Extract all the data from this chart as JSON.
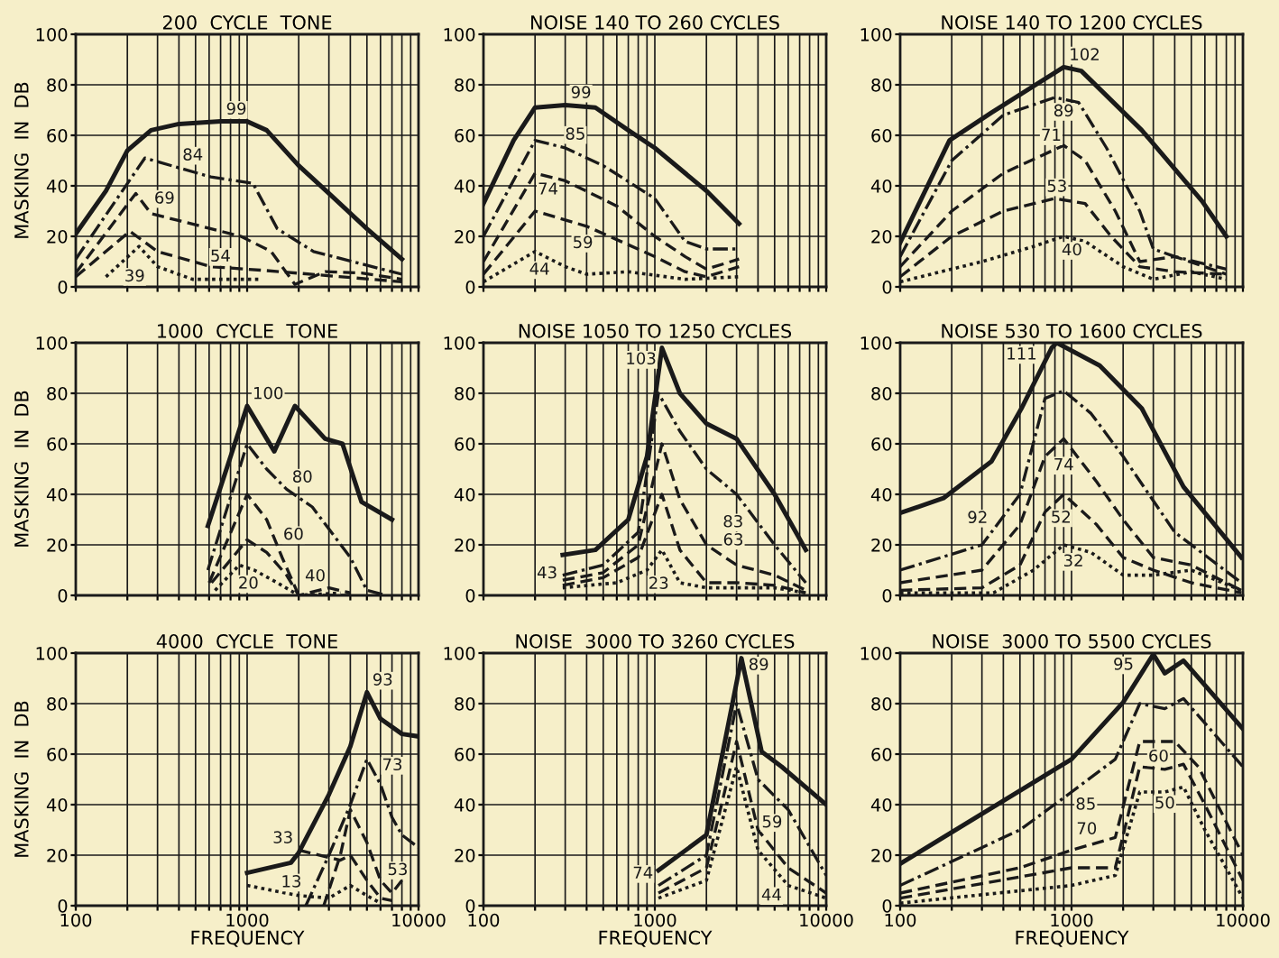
{
  "chart_data": [
    {
      "type": "line",
      "title": "200  CYCLE  TONE",
      "ylabel": "MASKING  IN  DB",
      "xlim": [
        100,
        10000
      ],
      "ylim": [
        0,
        100
      ],
      "log": "x",
      "grid": true,
      "tick_labels": "y",
      "legend": false,
      "xticks": [
        100,
        {
          "value": 200,
          "label": null
        },
        {
          "value": 300,
          "label": null
        },
        {
          "value": 400,
          "label": null
        },
        {
          "value": 500,
          "label": null
        },
        {
          "value": 600,
          "label": null
        },
        {
          "value": 700,
          "label": null
        },
        {
          "value": 800,
          "label": null
        },
        {
          "value": 900,
          "label": null
        },
        1000,
        {
          "value": 2000,
          "label": null
        },
        {
          "value": 3000,
          "label": null
        },
        {
          "value": 4000,
          "label": null
        },
        {
          "value": 5000,
          "label": null
        },
        {
          "value": 6000,
          "label": null
        },
        {
          "value": 7000,
          "label": null
        },
        {
          "value": 8000,
          "label": null
        },
        {
          "value": 9000,
          "label": null
        },
        10000
      ],
      "yticks": [
        0,
        20,
        40,
        60,
        80,
        100
      ],
      "series": [
        {
          "name": "99",
          "color": "#1a1a1a",
          "line_style": "solid",
          "x": [
            100,
            150,
            200,
            275,
            400,
            700,
            1000,
            1300,
            2000,
            3000,
            5000,
            8000
          ],
          "values": [
            21,
            38,
            54,
            62,
            64.5,
            65.5,
            65.5,
            62,
            48,
            37,
            23,
            11
          ]
        },
        {
          "name": "84",
          "color": "#1a1a1a",
          "line_style": "dashdot",
          "x": [
            100,
            253,
            615,
            1080,
            1500,
            2440,
            8000
          ],
          "values": [
            11,
            51,
            43.5,
            41,
            23,
            14,
            5
          ]
        },
        {
          "name": "69",
          "color": "#1a1a1a",
          "line_style": "dashed",
          "x": [
            100,
            224,
            275,
            412,
            920,
            1380,
            1900,
            2850,
            4650,
            8000
          ],
          "values": [
            5.5,
            37,
            29,
            26,
            20,
            14,
            1,
            6,
            5.5,
            3
          ]
        },
        {
          "name": "54",
          "color": "#1a1a1a",
          "line_style": "dashed",
          "x": [
            100,
            207,
            300,
            615,
            1270,
            8000
          ],
          "values": [
            4,
            22,
            14,
            8,
            6.5,
            2
          ]
        },
        {
          "name": "39",
          "color": "#1a1a1a",
          "line_style": "dotted",
          "x": [
            150,
            234,
            300,
            480,
            1170
          ],
          "values": [
            4,
            16,
            8,
            3,
            3
          ]
        }
      ]
    },
    {
      "type": "line",
      "title": "NOISE 140 TO 260 CYCLES",
      "xlim": [
        100,
        10000
      ],
      "ylim": [
        0,
        100
      ],
      "log": "x",
      "grid": true,
      "tick_labels": "y",
      "legend": false,
      "xticks": [
        100,
        {
          "value": 200,
          "label": null
        },
        {
          "value": 300,
          "label": null
        },
        {
          "value": 400,
          "label": null
        },
        {
          "value": 500,
          "label": null
        },
        {
          "value": 600,
          "label": null
        },
        {
          "value": 700,
          "label": null
        },
        {
          "value": 800,
          "label": null
        },
        {
          "value": 900,
          "label": null
        },
        1000,
        {
          "value": 2000,
          "label": null
        },
        {
          "value": 3000,
          "label": null
        },
        {
          "value": 4000,
          "label": null
        },
        {
          "value": 5000,
          "label": null
        },
        {
          "value": 6000,
          "label": null
        },
        {
          "value": 7000,
          "label": null
        },
        {
          "value": 8000,
          "label": null
        },
        {
          "value": 9000,
          "label": null
        },
        10000
      ],
      "yticks": [
        0,
        20,
        40,
        60,
        80,
        100
      ],
      "series": [
        {
          "name": "99",
          "color": "#1a1a1a",
          "line_style": "solid",
          "x": [
            100,
            150,
            200,
            300,
            450,
            700,
            1000,
            2000,
            3100
          ],
          "values": [
            33,
            58,
            71,
            72,
            71,
            62,
            55,
            38,
            25
          ]
        },
        {
          "name": "85",
          "color": "#1a1a1a",
          "line_style": "dashdot",
          "x": [
            100,
            200,
            300,
            500,
            1000,
            1500,
            2000,
            3100
          ],
          "values": [
            20,
            58,
            55,
            48,
            35,
            18,
            15,
            15
          ]
        },
        {
          "name": "74",
          "color": "#1a1a1a",
          "line_style": "dashed",
          "x": [
            100,
            200,
            300,
            600,
            1000,
            1500,
            2000,
            3100
          ],
          "values": [
            10,
            45,
            42,
            32,
            20,
            12,
            7,
            11
          ]
        },
        {
          "name": "59",
          "color": "#1a1a1a",
          "line_style": "dashed",
          "x": [
            100,
            200,
            400,
            1000,
            1500,
            2000,
            3100
          ],
          "values": [
            5,
            30,
            24,
            12,
            6,
            4,
            8
          ]
        },
        {
          "name": "44",
          "color": "#1a1a1a",
          "line_style": "dotted",
          "x": [
            100,
            200,
            300,
            400,
            700,
            1500,
            3100
          ],
          "values": [
            2,
            14,
            8,
            5,
            6,
            3,
            4
          ]
        }
      ]
    },
    {
      "type": "line",
      "title": "NOISE 140 TO 1200 CYCLES",
      "xlim": [
        100,
        10000
      ],
      "ylim": [
        0,
        100
      ],
      "log": "x",
      "grid": true,
      "tick_labels": "y",
      "legend": false,
      "xticks": [
        100,
        {
          "value": 200,
          "label": null
        },
        {
          "value": 300,
          "label": null
        },
        {
          "value": 400,
          "label": null
        },
        {
          "value": 500,
          "label": null
        },
        {
          "value": 600,
          "label": null
        },
        {
          "value": 700,
          "label": null
        },
        {
          "value": 800,
          "label": null
        },
        {
          "value": 900,
          "label": null
        },
        1000,
        {
          "value": 2000,
          "label": null
        },
        {
          "value": 3000,
          "label": null
        },
        {
          "value": 4000,
          "label": null
        },
        {
          "value": 5000,
          "label": null
        },
        {
          "value": 6000,
          "label": null
        },
        {
          "value": 7000,
          "label": null
        },
        {
          "value": 8000,
          "label": null
        },
        {
          "value": 9000,
          "label": null
        },
        10000
      ],
      "yticks": [
        0,
        20,
        40,
        60,
        80,
        100
      ],
      "series": [
        {
          "name": "102",
          "color": "#1a1a1a",
          "line_style": "solid",
          "x": [
            100,
            194,
            341,
            900,
            1140,
            2570,
            5770,
            8000
          ],
          "values": [
            17.5,
            58,
            69,
            87,
            85.5,
            62,
            34,
            20
          ]
        },
        {
          "name": "89",
          "color": "#1a1a1a",
          "line_style": "dashdot",
          "x": [
            100,
            200,
            400,
            800,
            1100,
            1600,
            2500,
            3000,
            4000,
            8000
          ],
          "values": [
            12,
            50,
            68,
            75,
            73,
            55,
            30,
            15,
            12,
            7
          ]
        },
        {
          "name": "71",
          "color": "#1a1a1a",
          "line_style": "dashed",
          "x": [
            100,
            200,
            400,
            900,
            1200,
            1800,
            2500,
            4000,
            8000
          ],
          "values": [
            8,
            30,
            45,
            56,
            50,
            30,
            10,
            12,
            5
          ]
        },
        {
          "name": "53",
          "color": "#1a1a1a",
          "line_style": "dashed",
          "x": [
            100,
            200,
            400,
            800,
            1200,
            1700,
            2500,
            4000,
            8000
          ],
          "values": [
            4,
            20,
            30,
            35,
            33,
            20,
            8,
            6,
            5
          ]
        },
        {
          "name": "40",
          "color": "#1a1a1a",
          "line_style": "dotted",
          "x": [
            100,
            300,
            600,
            900,
            1200,
            2000,
            3000,
            5000,
            8000
          ],
          "values": [
            2,
            10,
            16,
            20,
            18,
            8,
            3,
            6,
            3
          ]
        }
      ]
    },
    {
      "type": "line",
      "title": "1000  CYCLE  TONE",
      "ylabel": "MASKING  IN  DB",
      "xlim": [
        100,
        10000
      ],
      "ylim": [
        0,
        100
      ],
      "log": "x",
      "grid": true,
      "tick_labels": "y",
      "legend": false,
      "xticks": [
        100,
        {
          "value": 200,
          "label": null
        },
        {
          "value": 300,
          "label": null
        },
        {
          "value": 400,
          "label": null
        },
        {
          "value": 500,
          "label": null
        },
        {
          "value": 600,
          "label": null
        },
        {
          "value": 700,
          "label": null
        },
        {
          "value": 800,
          "label": null
        },
        {
          "value": 900,
          "label": null
        },
        1000,
        {
          "value": 2000,
          "label": null
        },
        {
          "value": 3000,
          "label": null
        },
        {
          "value": 4000,
          "label": null
        },
        {
          "value": 5000,
          "label": null
        },
        {
          "value": 6000,
          "label": null
        },
        {
          "value": 7000,
          "label": null
        },
        {
          "value": 8000,
          "label": null
        },
        {
          "value": 9000,
          "label": null
        },
        10000
      ],
      "yticks": [
        0,
        20,
        40,
        60,
        80,
        100
      ],
      "series": [
        {
          "name": "100",
          "color": "#1a1a1a",
          "line_style": "solid",
          "x": [
            590,
            1000,
            1440,
            1900,
            2850,
            3600,
            4650,
            7000
          ],
          "values": [
            27.5,
            75,
            57,
            75,
            62,
            60,
            37,
            30
          ]
        },
        {
          "name": "80",
          "color": "#1a1a1a",
          "line_style": "dashdot",
          "x": [
            590,
            1000,
            1300,
            1700,
            2400,
            4000,
            5000,
            6500
          ],
          "values": [
            10,
            60,
            50,
            42,
            35,
            15,
            2,
            0
          ]
        },
        {
          "name": "60",
          "color": "#1a1a1a",
          "line_style": "dashed",
          "x": [
            600,
            1000,
            1300,
            1600,
            2000,
            4000
          ],
          "values": [
            5,
            40,
            30,
            15,
            0,
            0
          ]
        },
        {
          "name": "40",
          "color": "#1a1a1a",
          "line_style": "dashed",
          "x": [
            620,
            1000,
            1300,
            1700,
            2000,
            3000,
            4000
          ],
          "values": [
            5,
            22,
            17,
            8,
            0,
            3,
            1
          ]
        },
        {
          "name": "20",
          "color": "#1a1a1a",
          "line_style": "dotted",
          "x": [
            650,
            900,
            1100,
            1500,
            2000,
            3500
          ],
          "values": [
            2,
            12,
            10,
            5,
            0,
            1
          ]
        }
      ]
    },
    {
      "type": "line",
      "title": "NOISE 1050 TO 1250 CYCLES",
      "xlim": [
        100,
        10000
      ],
      "ylim": [
        0,
        100
      ],
      "log": "x",
      "grid": true,
      "tick_labels": "y",
      "legend": false,
      "xticks": [
        100,
        {
          "value": 200,
          "label": null
        },
        {
          "value": 300,
          "label": null
        },
        {
          "value": 400,
          "label": null
        },
        {
          "value": 500,
          "label": null
        },
        {
          "value": 600,
          "label": null
        },
        {
          "value": 700,
          "label": null
        },
        {
          "value": 800,
          "label": null
        },
        {
          "value": 900,
          "label": null
        },
        1000,
        {
          "value": 2000,
          "label": null
        },
        {
          "value": 3000,
          "label": null
        },
        {
          "value": 4000,
          "label": null
        },
        {
          "value": 5000,
          "label": null
        },
        {
          "value": 6000,
          "label": null
        },
        {
          "value": 7000,
          "label": null
        },
        {
          "value": 8000,
          "label": null
        },
        {
          "value": 9000,
          "label": null
        },
        10000
      ],
      "yticks": [
        0,
        20,
        40,
        60,
        80,
        100
      ],
      "series": [
        {
          "name": "103",
          "color": "#1a1a1a",
          "line_style": "solid",
          "x": [
            290,
            450,
            700,
            900,
            1100,
            1400,
            2000,
            3000,
            5000,
            7600
          ],
          "values": [
            16,
            18,
            30,
            55,
            98,
            80,
            68,
            62,
            40,
            18
          ]
        },
        {
          "name": "83",
          "color": "#1a1a1a",
          "line_style": "dashdot",
          "x": [
            290,
            500,
            800,
            1050,
            1400,
            2000,
            3000,
            5000,
            7600
          ],
          "values": [
            8,
            12,
            25,
            80,
            65,
            50,
            40,
            20,
            5
          ]
        },
        {
          "name": "63",
          "color": "#1a1a1a",
          "line_style": "dashed",
          "x": [
            290,
            500,
            800,
            1100,
            1400,
            2000,
            3000,
            5000,
            7600
          ],
          "values": [
            6,
            9,
            20,
            60,
            38,
            20,
            12,
            8,
            2
          ]
        },
        {
          "name": "43",
          "color": "#1a1a1a",
          "line_style": "dashed",
          "x": [
            290,
            500,
            800,
            1100,
            1400,
            2000,
            3000,
            5000,
            7600
          ],
          "values": [
            4,
            7,
            15,
            40,
            18,
            5,
            5,
            4,
            1
          ]
        },
        {
          "name": "23",
          "color": "#1a1a1a",
          "line_style": "dotted",
          "x": [
            290,
            600,
            900,
            1100,
            1400,
            2000,
            5000,
            7600
          ],
          "values": [
            3,
            5,
            10,
            18,
            5,
            3,
            3,
            1
          ]
        }
      ]
    },
    {
      "type": "line",
      "title": "NOISE 530 TO 1600 CYCLES",
      "xlim": [
        100,
        10000
      ],
      "ylim": [
        0,
        100
      ],
      "log": "x",
      "grid": true,
      "tick_labels": "y",
      "legend": false,
      "xticks": [
        100,
        {
          "value": 200,
          "label": null
        },
        {
          "value": 300,
          "label": null
        },
        {
          "value": 400,
          "label": null
        },
        {
          "value": 500,
          "label": null
        },
        {
          "value": 600,
          "label": null
        },
        {
          "value": 700,
          "label": null
        },
        {
          "value": 800,
          "label": null
        },
        {
          "value": 900,
          "label": null
        },
        1000,
        {
          "value": 2000,
          "label": null
        },
        {
          "value": 3000,
          "label": null
        },
        {
          "value": 4000,
          "label": null
        },
        {
          "value": 5000,
          "label": null
        },
        {
          "value": 6000,
          "label": null
        },
        {
          "value": 7000,
          "label": null
        },
        {
          "value": 8000,
          "label": null
        },
        {
          "value": 9000,
          "label": null
        },
        10000
      ],
      "yticks": [
        0,
        20,
        40,
        60,
        80,
        100
      ],
      "series": [
        {
          "name": "111",
          "color": "#1a1a1a",
          "line_style": "solid",
          "x": [
            100,
            179,
            341,
            510,
            766,
            820,
            1460,
            2570,
            4500,
            9800
          ],
          "values": [
            32.6,
            38.5,
            53,
            74,
            98,
            100,
            91,
            74,
            43,
            15
          ]
        },
        {
          "name": "92",
          "color": "#1a1a1a",
          "line_style": "dashdot",
          "x": [
            100,
            300,
            500,
            700,
            900,
            1300,
            2000,
            4000,
            9800
          ],
          "values": [
            10,
            20,
            40,
            78,
            81,
            72,
            55,
            25,
            5
          ]
        },
        {
          "name": "74",
          "color": "#1a1a1a",
          "line_style": "dashed",
          "x": [
            100,
            300,
            500,
            700,
            900,
            1400,
            2000,
            3000,
            5000,
            9800
          ],
          "values": [
            5,
            10,
            28,
            55,
            62,
            45,
            30,
            15,
            12,
            2
          ]
        },
        {
          "name": "52",
          "color": "#1a1a1a",
          "line_style": "dashed",
          "x": [
            100,
            300,
            500,
            700,
            900,
            1400,
            2000,
            3000,
            5000,
            9800
          ],
          "values": [
            2,
            3,
            12,
            33,
            40,
            28,
            15,
            10,
            5,
            1
          ]
        },
        {
          "name": "32",
          "color": "#1a1a1a",
          "line_style": "dotted",
          "x": [
            100,
            350,
            600,
            900,
            1300,
            2000,
            3000,
            5000,
            9800
          ],
          "values": [
            1,
            1,
            10,
            20,
            17,
            8,
            8,
            10,
            2
          ]
        }
      ]
    },
    {
      "type": "line",
      "title": "4000  CYCLE  TONE",
      "ylabel": "MASKING  IN  DB",
      "xlabel": "FREQUENCY",
      "xlim": [
        100,
        10000
      ],
      "ylim": [
        0,
        100
      ],
      "log": "x",
      "grid": true,
      "legend": false,
      "xticks": [
        100,
        {
          "value": 200,
          "label": null
        },
        {
          "value": 300,
          "label": null
        },
        {
          "value": 400,
          "label": null
        },
        {
          "value": 500,
          "label": null
        },
        {
          "value": 600,
          "label": null
        },
        {
          "value": 700,
          "label": null
        },
        {
          "value": 800,
          "label": null
        },
        {
          "value": 900,
          "label": null
        },
        1000,
        {
          "value": 2000,
          "label": null
        },
        {
          "value": 3000,
          "label": null
        },
        {
          "value": 4000,
          "label": null
        },
        {
          "value": 5000,
          "label": null
        },
        {
          "value": 6000,
          "label": null
        },
        {
          "value": 7000,
          "label": null
        },
        {
          "value": 8000,
          "label": null
        },
        {
          "value": 9000,
          "label": null
        },
        10000
      ],
      "yticks": [
        0,
        20,
        40,
        60,
        80,
        100
      ],
      "series": [
        {
          "name": "93",
          "color": "#1a1a1a",
          "line_style": "solid",
          "x": [
            1000,
            1800,
            2000,
            3000,
            4000,
            5000,
            6000,
            8000,
            10000
          ],
          "values": [
            13,
            17,
            21,
            44,
            63,
            84.5,
            74,
            68,
            67
          ]
        },
        {
          "name": "73",
          "color": "#1a1a1a",
          "line_style": "dashdot",
          "x": [
            2200,
            3000,
            4000,
            5000,
            6000,
            7000,
            8000,
            10000
          ],
          "values": [
            0,
            20,
            40,
            58,
            48,
            35,
            28,
            23
          ]
        },
        {
          "name": "53",
          "color": "#1a1a1a",
          "line_style": "dashed",
          "x": [
            2800,
            3500,
            4000,
            5000,
            6000,
            7000,
            8000
          ],
          "values": [
            0,
            20,
            38,
            25,
            10,
            5,
            10
          ]
        },
        {
          "name": "33",
          "color": "#1a1a1a",
          "line_style": "dashed",
          "x": [
            2000,
            3500,
            4000,
            5000,
            6000,
            7000
          ],
          "values": [
            22,
            18,
            20,
            10,
            3,
            2
          ]
        },
        {
          "name": "13",
          "color": "#1a1a1a",
          "line_style": "dotted",
          "x": [
            1000,
            2000,
            3000,
            4000,
            5000,
            6000
          ],
          "values": [
            8,
            4,
            3,
            8,
            4,
            1
          ]
        }
      ]
    },
    {
      "type": "line",
      "title": "NOISE  3000 TO 3260 CYCLES",
      "xlabel": "FREQUENCY",
      "xlim": [
        100,
        10000
      ],
      "ylim": [
        0,
        100
      ],
      "log": "x",
      "grid": true,
      "legend": false,
      "xticks": [
        {
          "value": 100,
          "label": "100"
        },
        {
          "value": 200,
          "label": null
        },
        {
          "value": 300,
          "label": null
        },
        {
          "value": 400,
          "label": null
        },
        {
          "value": 500,
          "label": null
        },
        {
          "value": 600,
          "label": null
        },
        {
          "value": 700,
          "label": null
        },
        {
          "value": 800,
          "label": null
        },
        {
          "value": 900,
          "label": null
        },
        1000,
        {
          "value": 2000,
          "label": null
        },
        {
          "value": 3000,
          "label": null
        },
        {
          "value": 4000,
          "label": null
        },
        {
          "value": 5000,
          "label": null
        },
        {
          "value": 6000,
          "label": null
        },
        {
          "value": 7000,
          "label": null
        },
        {
          "value": 8000,
          "label": null
        },
        {
          "value": 9000,
          "label": null
        },
        10000
      ],
      "yticks": [
        0,
        20,
        40,
        60,
        80,
        100
      ],
      "series": [
        {
          "name": "89",
          "color": "#1a1a1a",
          "line_style": "solid",
          "x": [
            1050,
            2000,
            3200,
            4200,
            5500,
            10000
          ],
          "values": [
            14,
            28,
            98,
            61,
            55,
            40
          ]
        },
        {
          "name": "74",
          "color": "#1a1a1a",
          "line_style": "dashdot",
          "x": [
            1050,
            2000,
            3000,
            4000,
            6000,
            10000
          ],
          "values": [
            8,
            20,
            80,
            50,
            38,
            12
          ]
        },
        {
          "name": "59",
          "color": "#1a1a1a",
          "line_style": "dashed",
          "x": [
            1050,
            2000,
            3000,
            4000,
            6000,
            10000
          ],
          "values": [
            5,
            15,
            65,
            30,
            15,
            5
          ]
        },
        {
          "name": "44",
          "color": "#1a1a1a",
          "line_style": "dotted",
          "x": [
            1050,
            2000,
            3000,
            4000,
            6000,
            10000
          ],
          "values": [
            3,
            10,
            55,
            22,
            8,
            3
          ]
        }
      ]
    },
    {
      "type": "line",
      "title": "NOISE  3000 TO 5500 CYCLES",
      "xlabel": "FREQUENCY",
      "xlim": [
        100,
        10000
      ],
      "ylim": [
        0,
        100
      ],
      "log": "x",
      "grid": true,
      "legend": false,
      "xticks": [
        100,
        {
          "value": 200,
          "label": null
        },
        {
          "value": 300,
          "label": null
        },
        {
          "value": 400,
          "label": null
        },
        {
          "value": 500,
          "label": null
        },
        {
          "value": 600,
          "label": null
        },
        {
          "value": 700,
          "label": null
        },
        {
          "value": 800,
          "label": null
        },
        {
          "value": 900,
          "label": null
        },
        1000,
        {
          "value": 2000,
          "label": null
        },
        {
          "value": 3000,
          "label": null
        },
        {
          "value": 4000,
          "label": null
        },
        {
          "value": 5000,
          "label": null
        },
        {
          "value": 6000,
          "label": null
        },
        {
          "value": 7000,
          "label": null
        },
        {
          "value": 8000,
          "label": null
        },
        {
          "value": 9000,
          "label": null
        },
        10000
      ],
      "yticks": [
        0,
        20,
        40,
        60,
        80,
        100
      ],
      "series": [
        {
          "name": "95",
          "color": "#1a1a1a",
          "line_style": "solid",
          "x": [
            100,
            1000,
            2000,
            3000,
            3500,
            4500,
            10000
          ],
          "values": [
            16.6,
            58,
            80.5,
            99.5,
            92,
            97,
            70
          ]
        },
        {
          "name": "85",
          "color": "#1a1a1a",
          "line_style": "dashdot",
          "x": [
            100,
            500,
            1000,
            1800,
            2500,
            3500,
            4500,
            10000
          ],
          "values": [
            8,
            30,
            45,
            58,
            80,
            78,
            82,
            55
          ]
        },
        {
          "name": "70",
          "color": "#1a1a1a",
          "line_style": "dashed",
          "x": [
            100,
            500,
            1000,
            1800,
            2500,
            4000,
            5500,
            10000
          ],
          "values": [
            5,
            15,
            22,
            27,
            65,
            65,
            55,
            20
          ]
        },
        {
          "name": "60",
          "color": "#1a1a1a",
          "line_style": "dashed",
          "x": [
            100,
            1000,
            1800,
            2500,
            3500,
            4500,
            6000,
            10000
          ],
          "values": [
            3,
            15,
            15,
            55,
            54,
            56,
            40,
            10
          ]
        },
        {
          "name": "50",
          "color": "#1a1a1a",
          "line_style": "dotted",
          "x": [
            100,
            1000,
            1800,
            2500,
            3500,
            4500,
            6000,
            10000
          ],
          "values": [
            1,
            8,
            12,
            45,
            45,
            47,
            30,
            3
          ]
        }
      ]
    }
  ]
}
